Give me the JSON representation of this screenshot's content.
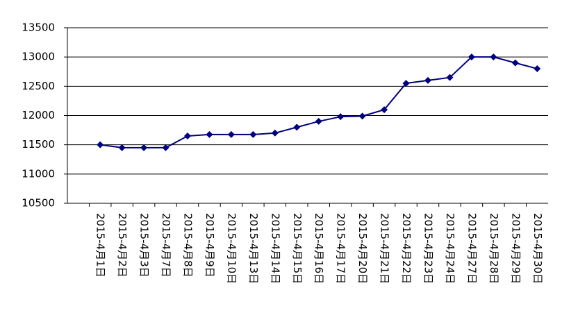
{
  "chart_data": {
    "type": "line",
    "categories": [
      null,
      "2015-4月1日",
      "2015-4月2日",
      "2015-4月3日",
      "2015-4月7日",
      "2015-4月8日",
      "2015-4月9日",
      "2015-4月10日",
      "2015-4月13日",
      "2015-4月14日",
      "2015-4月15日",
      "2015-4月16日",
      "2015-4月17日",
      "2015-4月20日",
      "2015-4月21日",
      "2015-4月22日",
      "2015-4月23日",
      "2015-4月24日",
      "2015-4月27日",
      "2015-4月28日",
      "2015-4月29日",
      "2015-4月30日"
    ],
    "values": [
      null,
      11500,
      11450,
      11450,
      11450,
      11650,
      11675,
      11675,
      11675,
      11700,
      11800,
      11900,
      11980,
      11990,
      12100,
      12550,
      12600,
      12650,
      13000,
      13000,
      12900,
      12800
    ],
    "color": "#000080",
    "ylim": [
      10500,
      13500
    ],
    "yticks": [
      10500,
      11000,
      11500,
      12000,
      12500,
      13000,
      13500
    ],
    "grid": true
  }
}
